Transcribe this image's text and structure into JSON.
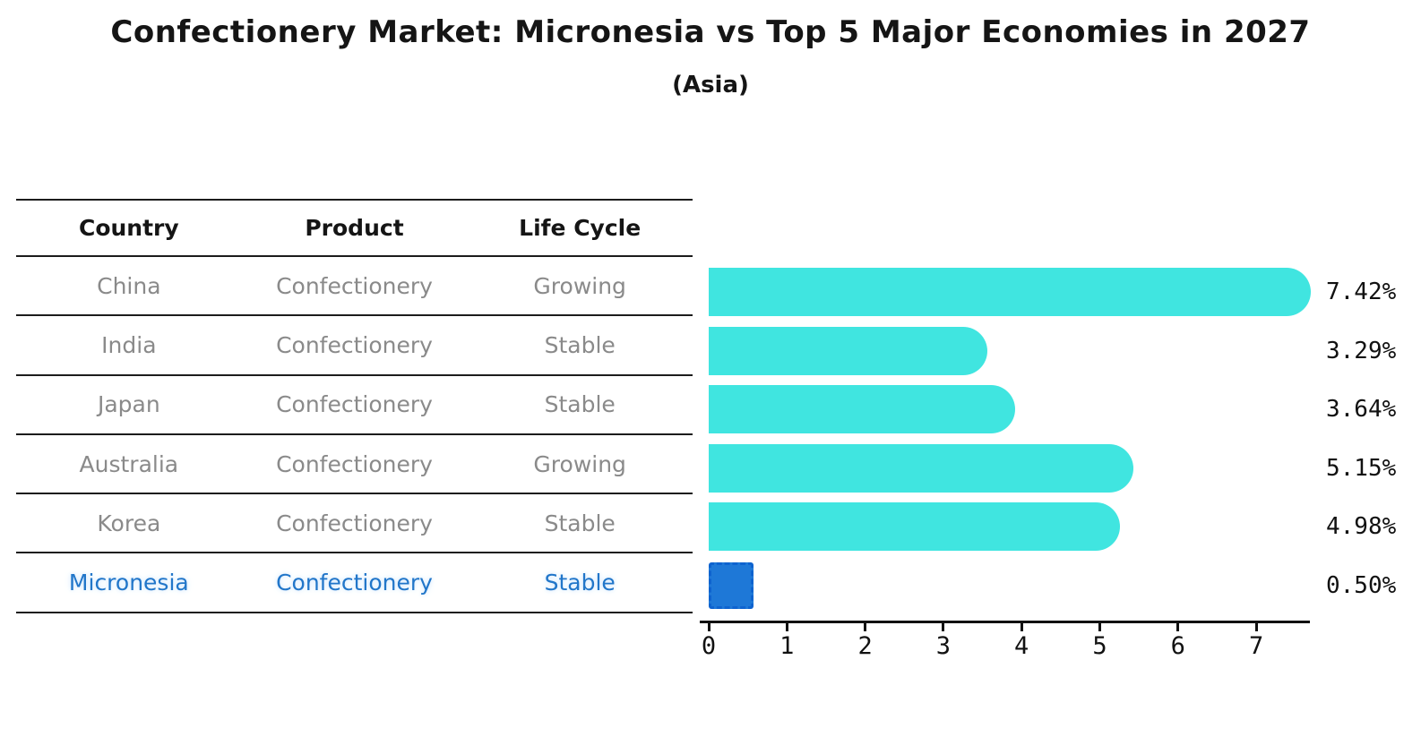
{
  "title": "Confectionery Market: Micronesia vs Top 5 Major Economies in 2027",
  "subtitle": "(Asia)",
  "table": {
    "headers": [
      "Country",
      "Product",
      "Life Cycle"
    ],
    "rows": [
      {
        "country": "China",
        "product": "Confectionery",
        "life_cycle": "Growing",
        "highlight": false
      },
      {
        "country": "India",
        "product": "Confectionery",
        "life_cycle": "Stable",
        "highlight": false
      },
      {
        "country": "Japan",
        "product": "Confectionery",
        "life_cycle": "Stable",
        "highlight": false
      },
      {
        "country": "Australia",
        "product": "Confectionery",
        "life_cycle": "Growing",
        "highlight": false
      },
      {
        "country": "Korea",
        "product": "Confectionery",
        "life_cycle": "Stable",
        "highlight": false
      },
      {
        "country": "Micronesia",
        "product": "Confectionery",
        "life_cycle": "Stable",
        "highlight": true
      }
    ]
  },
  "chart_data": {
    "type": "bar",
    "orientation": "horizontal",
    "title": "Confectionery Market: Micronesia vs Top 5 Major Economies in 2027",
    "subtitle": "(Asia)",
    "categories": [
      "China",
      "India",
      "Japan",
      "Australia",
      "Korea",
      "Micronesia"
    ],
    "values": [
      7.42,
      3.29,
      3.64,
      5.15,
      4.98,
      0.5
    ],
    "value_labels": [
      "7.42%",
      "3.29%",
      "3.64%",
      "5.15%",
      "4.98%",
      "0.50%"
    ],
    "xlabel": "",
    "ylabel": "",
    "xlim": [
      0,
      7.7
    ],
    "xticks": [
      0,
      1,
      2,
      3,
      4,
      5,
      6,
      7
    ],
    "grid": false,
    "legend": null,
    "highlight_index": 5,
    "bar_color": "#40E5E0",
    "highlight_bar_color": "#1E78D7",
    "highlight_border_color": "#0E63CF",
    "label_color": "#111111",
    "highlight_text_color": "#2176c9",
    "muted_text_color": "#8a8a8a"
  }
}
